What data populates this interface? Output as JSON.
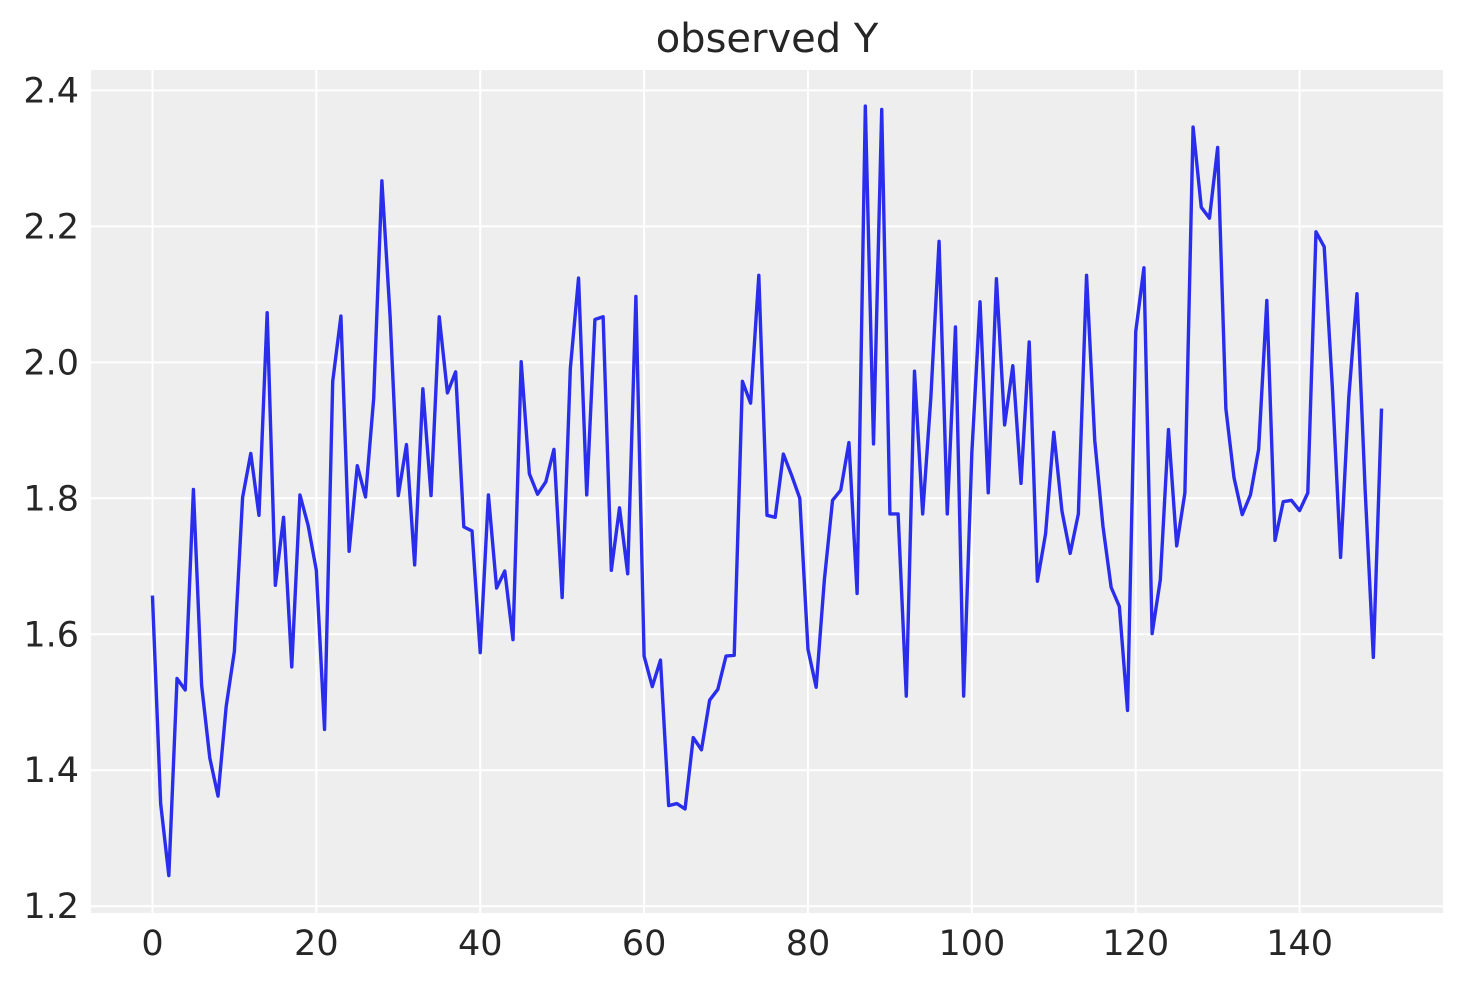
{
  "chart_data": {
    "type": "line",
    "title": "observed Y",
    "xlabel": "",
    "ylabel": "",
    "xlim": [
      -7.5,
      157.5
    ],
    "ylim": [
      1.19,
      2.43
    ],
    "grid": true,
    "legend": "none",
    "x_ticks": [
      0,
      20,
      40,
      60,
      80,
      100,
      120,
      140
    ],
    "x_tick_labels": [
      "0",
      "20",
      "40",
      "60",
      "80",
      "100",
      "120",
      "140"
    ],
    "y_ticks": [
      1.2,
      1.4,
      1.6,
      1.8,
      2.0,
      2.2,
      2.4
    ],
    "y_tick_labels": [
      "1.2",
      "1.4",
      "1.6",
      "1.8",
      "2.0",
      "2.2",
      "2.4"
    ],
    "colors": {
      "line": "#2a2eec",
      "background": "#eeeeee",
      "grid": "#ffffff",
      "text": "#262626"
    },
    "series": [
      {
        "values": [
          1.657,
          1.351,
          1.245,
          1.535,
          1.518,
          1.813,
          1.525,
          1.418,
          1.362,
          1.494,
          1.575,
          1.801,
          1.866,
          1.775,
          2.073,
          1.672,
          1.772,
          1.552,
          1.805,
          1.76,
          1.694,
          1.46,
          1.972,
          2.068,
          1.722,
          1.848,
          1.802,
          1.947,
          2.267,
          2.068,
          1.804,
          1.879,
          1.702,
          1.961,
          1.804,
          2.067,
          1.955,
          1.986,
          1.758,
          1.752,
          1.573,
          1.805,
          1.668,
          1.693,
          1.592,
          2.001,
          1.836,
          1.806,
          1.824,
          1.872,
          1.654,
          1.991,
          2.124,
          1.805,
          2.063,
          2.067,
          1.694,
          1.786,
          1.689,
          2.097,
          1.568,
          1.523,
          1.562,
          1.348,
          1.351,
          1.343,
          1.448,
          1.43,
          1.503,
          1.519,
          1.568,
          1.569,
          1.972,
          1.94,
          2.128,
          1.775,
          1.772,
          1.865,
          1.834,
          1.8,
          1.578,
          1.522,
          1.68,
          1.797,
          1.812,
          1.882,
          1.66,
          2.377,
          1.88,
          2.372,
          1.777,
          1.777,
          1.509,
          1.987,
          1.777,
          1.949,
          2.178,
          1.777,
          2.052,
          1.509,
          1.867,
          2.089,
          1.808,
          2.123,
          1.908,
          1.995,
          1.822,
          2.03,
          1.678,
          1.748,
          1.897,
          1.781,
          1.719,
          1.777,
          2.128,
          1.885,
          1.759,
          1.669,
          1.641,
          1.488,
          2.045,
          2.139,
          1.601,
          1.68,
          1.901,
          1.73,
          1.808,
          2.346,
          2.228,
          2.212,
          2.316,
          1.932,
          1.83,
          1.776,
          1.805,
          1.872,
          2.091,
          1.738,
          1.795,
          1.797,
          1.782,
          1.808,
          2.192,
          2.17,
          1.962,
          1.713,
          1.948,
          2.101,
          1.812,
          1.566,
          1.932
        ]
      }
    ]
  }
}
